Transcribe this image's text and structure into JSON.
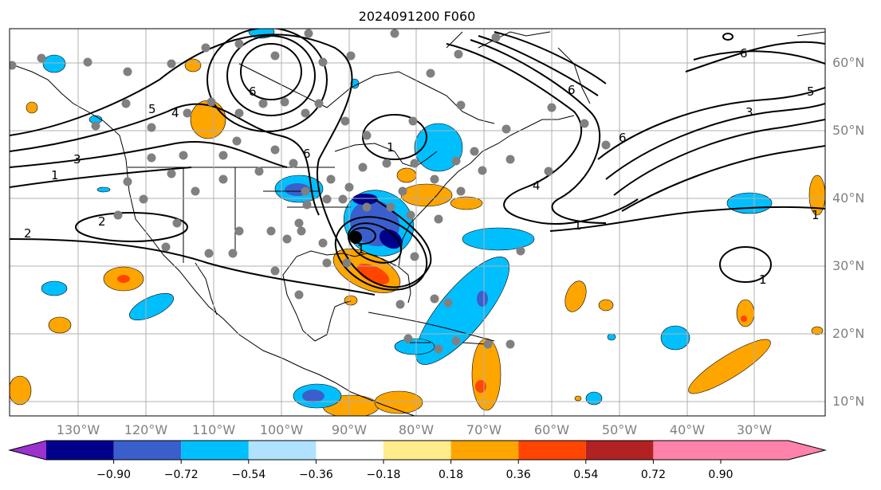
{
  "title": "2024091200 F060",
  "lat_labels": [
    "60°N",
    "50°N",
    "40°N",
    "30°N",
    "20°N",
    "10°N"
  ],
  "lon_labels": [
    "130°W",
    "120°W",
    "110°W",
    "100°W",
    "90°W",
    "80°W",
    "70°W",
    "60°W",
    "50°W",
    "40°W",
    "30°W"
  ],
  "colorbar": {
    "ticks": [
      "−0.90",
      "−0.72",
      "−0.54",
      "−0.36",
      "−0.18",
      "0.18",
      "0.36",
      "0.54",
      "0.72",
      "0.90"
    ],
    "colors": [
      "#9a32cd",
      "#00008b",
      "#3a5fcd",
      "#00bfff",
      "#b0e2ff",
      "#ffffff",
      "#ffec8b",
      "#ffa500",
      "#ff4500",
      "#b22222",
      "#ff82ab"
    ]
  },
  "contour_labels": [
    "6",
    "6",
    "5",
    "5",
    "4",
    "3",
    "1",
    "1",
    "2",
    "2",
    "6",
    "6",
    "6",
    "4",
    "3",
    "1",
    "1",
    "1",
    "1"
  ],
  "colors": {
    "orange": "#ffa500",
    "dark_orange": "#ff4500",
    "red": "#b22222",
    "light_blue": "#00bfff",
    "blue": "#3a5fcd",
    "navy": "#00008b",
    "station": "#808080",
    "center_marker": "#000000"
  }
}
